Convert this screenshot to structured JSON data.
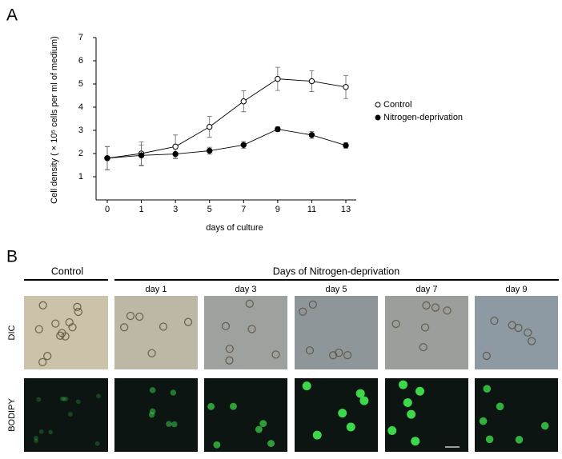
{
  "panel_labels": [
    "A",
    "B"
  ],
  "chart_data": {
    "type": "line",
    "xlabel": "days of culture",
    "ylabel": "Cell density ( × 10⁵ cells per ml of medium)",
    "categories": [
      "0",
      "1",
      "3",
      "5",
      "7",
      "9",
      "11",
      "13"
    ],
    "ylim": [
      0,
      7
    ],
    "yticks": [
      1,
      2,
      3,
      4,
      5,
      6,
      7
    ],
    "legend": "right",
    "series": [
      {
        "name": "Control",
        "color": "#000000",
        "marker_fill": "#ffffff",
        "values": [
          1.8,
          2.0,
          2.3,
          3.15,
          4.25,
          5.22,
          5.12,
          4.87
        ],
        "errors": [
          0.5,
          0.5,
          0.5,
          0.45,
          0.45,
          0.5,
          0.45,
          0.5
        ]
      },
      {
        "name": "Nitrogen-deprivation",
        "color": "#000000",
        "marker_fill": "#000000",
        "values": [
          1.8,
          1.92,
          1.98,
          2.12,
          2.37,
          3.05,
          2.8,
          2.35
        ],
        "errors": [
          0.5,
          0.45,
          0.2,
          0.15,
          0.15,
          0.1,
          0.15,
          0.12
        ]
      }
    ]
  },
  "panel_b": {
    "control": "Control",
    "treatment": "Days of Nitrogen-deprivation",
    "days": [
      "day 1",
      "day 3",
      "day 5",
      "day 7",
      "day 9"
    ],
    "rows": [
      "DIC",
      "BODIPY"
    ]
  }
}
